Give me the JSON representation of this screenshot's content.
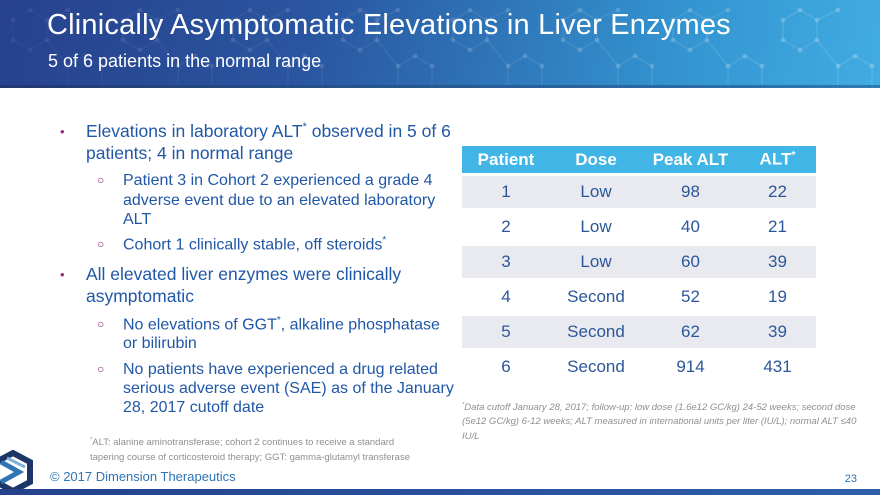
{
  "slide": {
    "title": "Clinically Asymptomatic Elevations in Liver Enzymes",
    "subtitle": "5 of 6 patients in the normal range",
    "copyright": "© 2017 Dimension Therapeutics",
    "page_number": "23"
  },
  "markers": {
    "level1": "•",
    "level2": "○"
  },
  "bullets": {
    "b1": {
      "pre": "Elevations in laboratory ALT",
      "sup": "*",
      "post": " observed in 5 of 6 patients; 4 in normal range"
    },
    "b1_sub1": {
      "text": "Patient 3 in Cohort 2 experienced a grade 4 adverse event due to an elevated laboratory ALT"
    },
    "b1_sub2": {
      "pre": "Cohort 1 clinically stable, off steroids",
      "sup": "*",
      "post": ""
    },
    "b2": {
      "text": "All elevated liver enzymes were clinically asymptomatic"
    },
    "b2_sub1": {
      "pre": "No elevations of GGT",
      "sup": "*",
      "post": ", alkaline phosphatase or bilirubin"
    },
    "b2_sub2": {
      "text": "No patients have experienced a drug related serious adverse event (SAE) as of the January 28, 2017 cutoff date"
    }
  },
  "table": {
    "headers": [
      "Patient",
      "Dose",
      "Peak ALT",
      "ALT"
    ],
    "last_header_sup": "*",
    "rows": [
      [
        "1",
        "Low",
        "98",
        "22"
      ],
      [
        "2",
        "Low",
        "40",
        "21"
      ],
      [
        "3",
        "Low",
        "60",
        "39"
      ],
      [
        "4",
        "Second",
        "52",
        "19"
      ],
      [
        "5",
        "Second",
        "62",
        "39"
      ],
      [
        "6",
        "Second",
        "914",
        "431"
      ]
    ]
  },
  "footnotes": {
    "table_note_sup": "*",
    "table_note": "Data cutoff January 28, 2017; follow-up: low dose (1.6e12 GC/kg) 24-52 weeks; second dose (5e12 GC/kg) 6-12 weeks; ALT measured in international units per liter (IU/L); normal ALT ≤40 IU/L",
    "abbrev_note_sup": "*",
    "abbrev_note": "ALT: alanine aminotransferase; cohort 2 continues to receive a standard tapering course of corticosteroid therapy; GGT: gamma-glutamyl transferase"
  },
  "colors": {
    "header_gradient_start": "#27418D",
    "header_gradient_end": "#41ACE2",
    "table_header_bg": "#41B6E6",
    "table_row_alt_bg": "#E9E9F0",
    "body_text_blue": "#2057A7",
    "table_text_blue": "#2B579A",
    "bullet_marker_purple": "#942977",
    "footnote_gray": "#8F8F8F",
    "footer_blue": "#2E74B5",
    "bottom_bar_blue": "#24418C"
  }
}
